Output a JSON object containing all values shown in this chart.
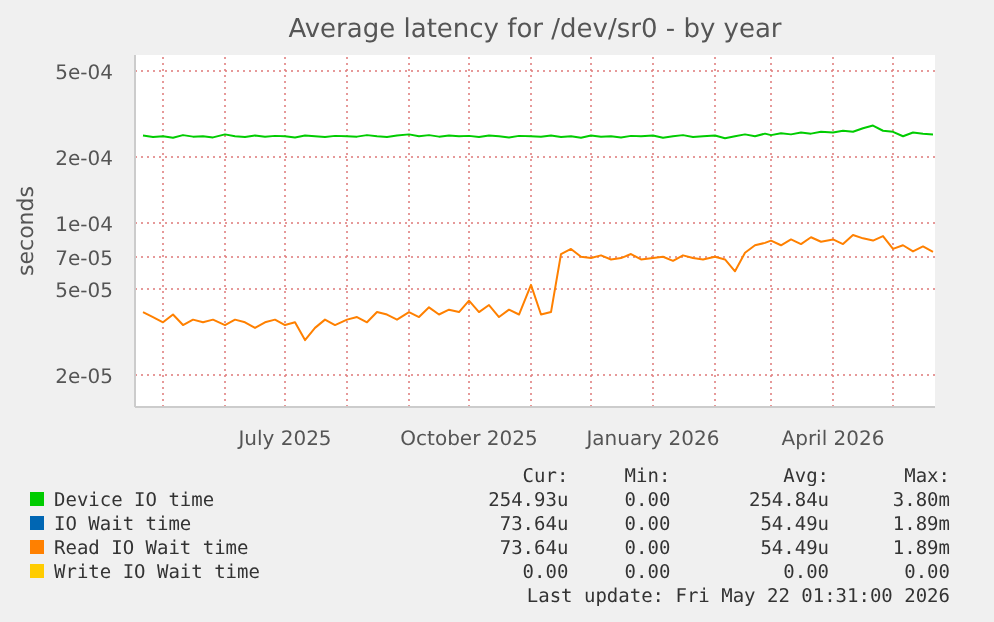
{
  "chart_data": {
    "type": "line",
    "title": "Average latency for /dev/sr0 - by year",
    "ylabel": "seconds",
    "log": "y",
    "x": [
      "2025-04-21",
      "2025-04-26",
      "2025-05-01",
      "2025-05-06",
      "2025-05-11",
      "2025-05-16",
      "2025-05-21",
      "2025-05-26",
      "2025-06-01",
      "2025-06-06",
      "2025-06-11",
      "2025-06-16",
      "2025-06-21",
      "2025-06-26",
      "2025-07-01",
      "2025-07-06",
      "2025-07-11",
      "2025-07-16",
      "2025-07-21",
      "2025-07-26",
      "2025-08-01",
      "2025-08-06",
      "2025-08-11",
      "2025-08-16",
      "2025-08-21",
      "2025-08-26",
      "2025-09-01",
      "2025-09-06",
      "2025-09-11",
      "2025-09-16",
      "2025-09-21",
      "2025-09-26",
      "2025-10-01",
      "2025-10-06",
      "2025-10-11",
      "2025-10-16",
      "2025-10-21",
      "2025-10-26",
      "2025-11-01",
      "2025-11-06",
      "2025-11-11",
      "2025-11-16",
      "2025-11-21",
      "2025-11-26",
      "2025-12-01",
      "2025-12-06",
      "2025-12-11",
      "2025-12-16",
      "2025-12-21",
      "2025-12-26",
      "2026-01-01",
      "2026-01-06",
      "2026-01-11",
      "2026-01-16",
      "2026-01-21",
      "2026-01-26",
      "2026-02-01",
      "2026-02-06",
      "2026-02-11",
      "2026-02-16",
      "2026-02-21",
      "2026-02-26",
      "2026-03-01",
      "2026-03-06",
      "2026-03-11",
      "2026-03-16",
      "2026-03-21",
      "2026-03-26",
      "2026-04-01",
      "2026-04-06",
      "2026-04-11",
      "2026-04-16",
      "2026-04-21",
      "2026-04-26",
      "2026-05-01",
      "2026-05-06",
      "2026-05-11",
      "2026-05-16",
      "2026-05-21"
    ],
    "series": [
      {
        "name": "Device IO time",
        "color": "#00cc00",
        "values": [
          0.000252,
          0.000248,
          0.00025,
          0.000246,
          0.000253,
          0.000249,
          0.00025,
          0.000247,
          0.000255,
          0.00025,
          0.000248,
          0.000252,
          0.000249,
          0.000251,
          0.00025,
          0.000247,
          0.000252,
          0.00025,
          0.000248,
          0.000251,
          0.00025,
          0.000249,
          0.000253,
          0.00025,
          0.000248,
          0.000252,
          0.000255,
          0.00025,
          0.000253,
          0.000249,
          0.000252,
          0.00025,
          0.000251,
          0.000248,
          0.000252,
          0.00025,
          0.000247,
          0.000251,
          0.00025,
          0.000249,
          0.000252,
          0.000248,
          0.00025,
          0.000246,
          0.000252,
          0.000249,
          0.00025,
          0.000247,
          0.000251,
          0.00025,
          0.000252,
          0.000246,
          0.00025,
          0.000253,
          0.000248,
          0.00025,
          0.000252,
          0.000245,
          0.00025,
          0.000255,
          0.00025,
          0.000257,
          0.000253,
          0.000258,
          0.000255,
          0.00026,
          0.000257,
          0.000262,
          0.00026,
          0.000265,
          0.000262,
          0.000272,
          0.00028,
          0.000265,
          0.000262,
          0.00025,
          0.00026,
          0.000257,
          0.000255
        ]
      },
      {
        "name": "IO Wait time",
        "color": "#0066b3",
        "values": [
          null,
          null,
          null,
          null,
          null,
          null,
          null,
          null,
          null,
          null,
          null,
          null,
          null,
          null,
          null,
          null,
          null,
          null,
          null,
          null,
          null,
          null,
          null,
          null,
          null,
          null,
          null,
          null,
          null,
          null,
          null,
          null,
          null,
          null,
          null,
          null,
          null,
          null,
          null,
          null,
          null,
          null,
          null,
          null,
          null,
          null,
          null,
          null,
          null,
          null,
          null,
          null,
          null,
          null,
          null,
          null,
          null,
          null,
          null,
          null,
          null,
          null,
          null,
          null,
          null,
          null,
          null,
          null,
          null,
          null,
          null,
          null,
          null,
          null,
          null,
          null,
          null,
          null,
          null
        ]
      },
      {
        "name": "Read IO Wait time",
        "color": "#ff8000",
        "values": [
          3.9e-05,
          3.7e-05,
          3.5e-05,
          3.8e-05,
          3.4e-05,
          3.6e-05,
          3.5e-05,
          3.6e-05,
          3.4e-05,
          3.6e-05,
          3.5e-05,
          3.3e-05,
          3.5e-05,
          3.6e-05,
          3.4e-05,
          3.5e-05,
          2.9e-05,
          3.3e-05,
          3.6e-05,
          3.4e-05,
          3.6e-05,
          3.7e-05,
          3.5e-05,
          3.9e-05,
          3.8e-05,
          3.6e-05,
          3.9e-05,
          3.7e-05,
          4.1e-05,
          3.8e-05,
          4e-05,
          3.9e-05,
          4.4e-05,
          3.9e-05,
          4.2e-05,
          3.7e-05,
          4e-05,
          3.8e-05,
          5.2e-05,
          3.8e-05,
          3.9e-05,
          7.2e-05,
          7.6e-05,
          7e-05,
          6.9e-05,
          7.1e-05,
          6.8e-05,
          6.9e-05,
          7.2e-05,
          6.8e-05,
          6.9e-05,
          7e-05,
          6.7e-05,
          7.1e-05,
          6.9e-05,
          6.8e-05,
          7e-05,
          6.8e-05,
          6e-05,
          7.3e-05,
          7.9e-05,
          8.1e-05,
          8.3e-05,
          7.9e-05,
          8.4e-05,
          8e-05,
          8.6e-05,
          8.2e-05,
          8.4e-05,
          8e-05,
          8.8e-05,
          8.5e-05,
          8.3e-05,
          8.7e-05,
          7.6e-05,
          7.9e-05,
          7.4e-05,
          7.8e-05,
          7.36e-05
        ]
      },
      {
        "name": "Write IO Wait time",
        "color": "#ffcc00",
        "values": [
          null,
          null,
          null,
          null,
          null,
          null,
          null,
          null,
          null,
          null,
          null,
          null,
          null,
          null,
          null,
          null,
          null,
          null,
          null,
          null,
          null,
          null,
          null,
          null,
          null,
          null,
          null,
          null,
          null,
          null,
          null,
          null,
          null,
          null,
          null,
          null,
          null,
          null,
          null,
          null,
          null,
          null,
          null,
          null,
          null,
          null,
          null,
          null,
          null,
          null,
          null,
          null,
          null,
          null,
          null,
          null,
          null,
          null,
          null,
          null,
          null,
          null,
          null,
          null,
          null,
          null,
          null,
          null,
          null,
          null,
          null,
          null,
          null,
          null,
          null,
          null,
          null,
          null,
          null
        ]
      }
    ],
    "xlim": [
      "2025-04-17",
      "2026-05-22"
    ],
    "xticks": [
      {
        "value": "2025-05-01",
        "label": null
      },
      {
        "value": "2025-06-01",
        "label": null
      },
      {
        "value": "2025-07-01",
        "label": "July 2025"
      },
      {
        "value": "2025-08-01",
        "label": null
      },
      {
        "value": "2025-09-01",
        "label": null
      },
      {
        "value": "2025-10-01",
        "label": "October 2025"
      },
      {
        "value": "2025-11-01",
        "label": null
      },
      {
        "value": "2025-12-01",
        "label": null
      },
      {
        "value": "2026-01-01",
        "label": "January 2026"
      },
      {
        "value": "2026-02-01",
        "label": null
      },
      {
        "value": "2026-03-01",
        "label": null
      },
      {
        "value": "2026-04-01",
        "label": "April 2026"
      },
      {
        "value": "2026-05-01",
        "label": null
      }
    ],
    "ylim": [
      1.43e-05,
      0.00059
    ],
    "yticks": [
      {
        "value": 2e-05,
        "label": "2e-05"
      },
      {
        "value": 5e-05,
        "label": "5e-05"
      },
      {
        "value": 7e-05,
        "label": "7e-05"
      },
      {
        "value": 0.0001,
        "label": "1e-04"
      },
      {
        "value": 0.0002,
        "label": "2e-04"
      },
      {
        "value": 0.0005,
        "label": "5e-04"
      }
    ],
    "grid": true,
    "legend": "bottom",
    "line_style": "solid",
    "annotations": [
      "Cur:",
      "Min:",
      "Avg:",
      "Max:",
      "254.93u",
      "0.00",
      "254.84u",
      "3.80m",
      "73.64u",
      "0.00",
      "54.49u",
      "1.89m",
      "73.64u",
      "0.00",
      "54.49u",
      "1.89m",
      "0.00",
      "0.00",
      "0.00",
      "0.00",
      "Last update: Fri May 22 01:31:00 2026"
    ]
  }
}
